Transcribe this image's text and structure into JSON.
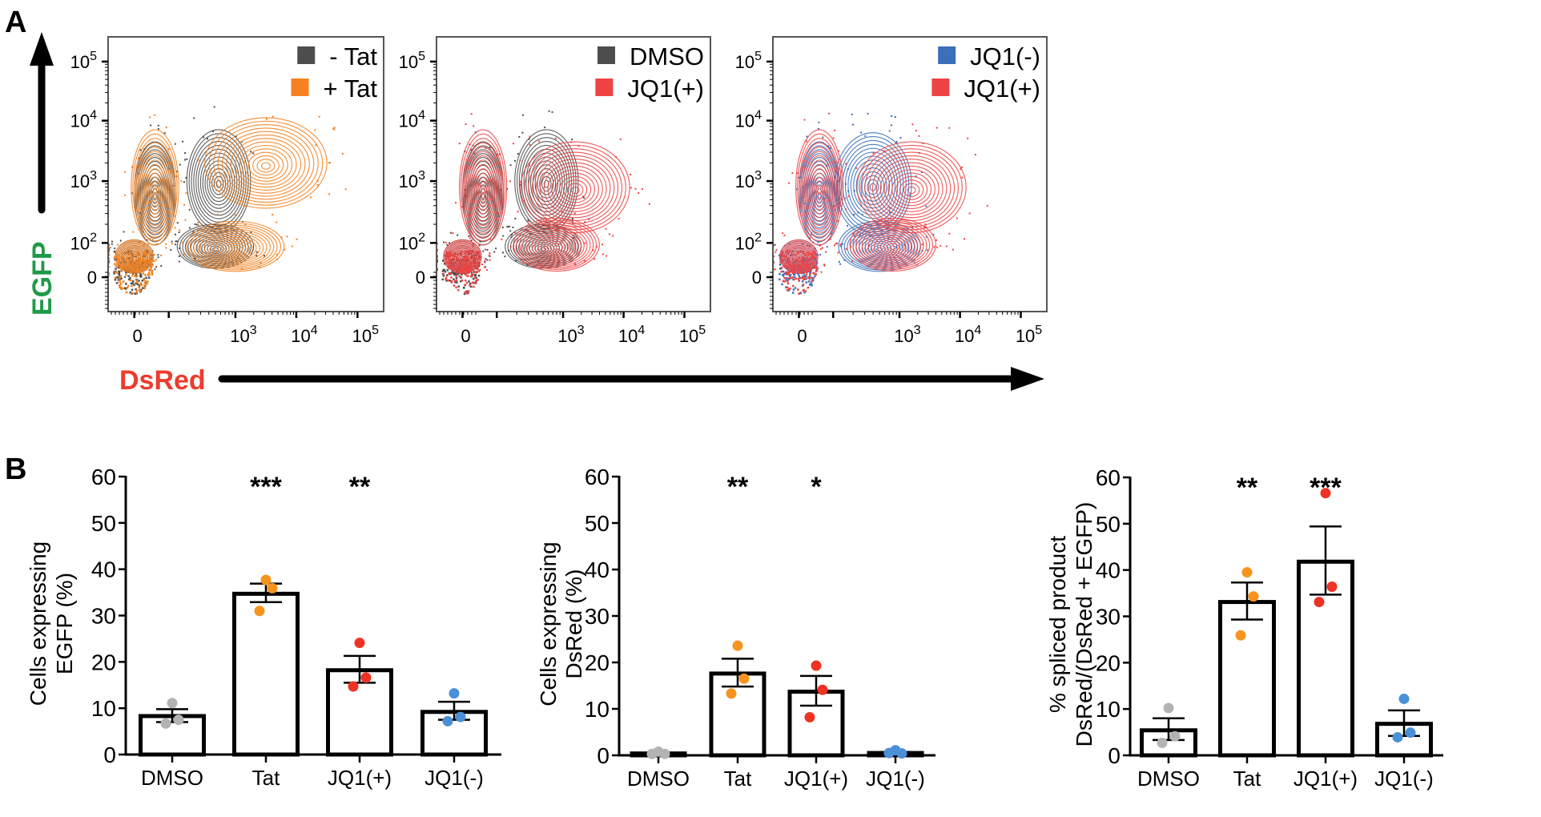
{
  "figure": {
    "panel_a_label": "A",
    "panel_b_label": "B",
    "egfp_axis_title": "EGFP",
    "dsred_axis_title": "DsRed",
    "egfp_color": "#1f9a48",
    "dsred_color": "#ee3b2c"
  },
  "chart_data": [
    {
      "type": "scatter",
      "subtype": "flow-cytometry-contour",
      "title": "",
      "xlabel": "DsRed",
      "ylabel": "EGFP",
      "x_ticks": [
        "0",
        "10^3",
        "10^4",
        "10^5"
      ],
      "y_ticks": [
        "0",
        "10^2",
        "10^3",
        "10^4",
        "10^5"
      ],
      "scale": "biexponential",
      "legend_position": "top-right",
      "series": [
        {
          "name": "- Tat",
          "color": "#4d4d4d",
          "populations": [
            {
              "x_log": 1.0,
              "y_log": 1.6,
              "spread_x": 0.55,
              "spread_y": 0.45
            },
            {
              "x_log": 1.6,
              "y_log": 2.8,
              "spread_x": 0.5,
              "spread_y": 0.85
            },
            {
              "x_log": 2.75,
              "y_log": 3.0,
              "spread_x": 0.5,
              "spread_y": 0.85
            },
            {
              "x_log": 2.7,
              "y_log": 1.9,
              "spread_x": 0.6,
              "spread_y": 0.4
            }
          ]
        },
        {
          "name": "+ Tat",
          "color": "#f5821f",
          "populations": [
            {
              "x_log": 1.0,
              "y_log": 1.6,
              "spread_x": 0.55,
              "spread_y": 0.45
            },
            {
              "x_log": 1.6,
              "y_log": 2.9,
              "spread_x": 0.55,
              "spread_y": 0.95
            },
            {
              "x_log": 3.5,
              "y_log": 3.3,
              "spread_x": 1.0,
              "spread_y": 0.75
            },
            {
              "x_log": 3.0,
              "y_log": 1.9,
              "spread_x": 0.8,
              "spread_y": 0.45
            }
          ]
        }
      ]
    },
    {
      "type": "scatter",
      "subtype": "flow-cytometry-contour",
      "title": "",
      "xlabel": "DsRed",
      "ylabel": "EGFP",
      "x_ticks": [
        "0",
        "10^3",
        "10^4",
        "10^5"
      ],
      "y_ticks": [
        "0",
        "10^2",
        "10^3",
        "10^4",
        "10^5"
      ],
      "scale": "biexponential",
      "legend_position": "top-right",
      "series": [
        {
          "name": "DMSO",
          "color": "#4d4d4d",
          "populations": [
            {
              "x_log": 1.0,
              "y_log": 1.6,
              "spread_x": 0.55,
              "spread_y": 0.45
            },
            {
              "x_log": 1.6,
              "y_log": 2.8,
              "spread_x": 0.5,
              "spread_y": 0.85
            },
            {
              "x_log": 2.75,
              "y_log": 3.0,
              "spread_x": 0.5,
              "spread_y": 0.85
            },
            {
              "x_log": 2.7,
              "y_log": 1.9,
              "spread_x": 0.6,
              "spread_y": 0.4
            }
          ]
        },
        {
          "name": "JQ1(+)",
          "color": "#ee4444",
          "populations": [
            {
              "x_log": 1.0,
              "y_log": 1.6,
              "spread_x": 0.55,
              "spread_y": 0.45
            },
            {
              "x_log": 1.6,
              "y_log": 2.9,
              "spread_x": 0.55,
              "spread_y": 0.95
            },
            {
              "x_log": 3.2,
              "y_log": 2.9,
              "spread_x": 0.9,
              "spread_y": 0.75
            },
            {
              "x_log": 2.9,
              "y_log": 1.95,
              "spread_x": 0.7,
              "spread_y": 0.45
            }
          ]
        }
      ]
    },
    {
      "type": "scatter",
      "subtype": "flow-cytometry-contour",
      "title": "",
      "xlabel": "DsRed",
      "ylabel": "EGFP",
      "x_ticks": [
        "0",
        "10^3",
        "10^4",
        "10^5"
      ],
      "y_ticks": [
        "0",
        "10^2",
        "10^3",
        "10^4",
        "10^5"
      ],
      "scale": "biexponential",
      "legend_position": "top-right",
      "series": [
        {
          "name": "JQ1(-)",
          "color": "#3b6fb9",
          "populations": [
            {
              "x_log": 1.0,
              "y_log": 1.6,
              "spread_x": 0.55,
              "spread_y": 0.45
            },
            {
              "x_log": 1.6,
              "y_log": 2.8,
              "spread_x": 0.5,
              "spread_y": 0.85
            },
            {
              "x_log": 2.6,
              "y_log": 2.95,
              "spread_x": 0.6,
              "spread_y": 0.85
            },
            {
              "x_log": 2.7,
              "y_log": 1.9,
              "spread_x": 0.65,
              "spread_y": 0.45
            }
          ]
        },
        {
          "name": "JQ1(+)",
          "color": "#ee4444",
          "populations": [
            {
              "x_log": 1.0,
              "y_log": 1.6,
              "spread_x": 0.55,
              "spread_y": 0.45
            },
            {
              "x_log": 1.6,
              "y_log": 2.9,
              "spread_x": 0.55,
              "spread_y": 0.95
            },
            {
              "x_log": 3.2,
              "y_log": 2.9,
              "spread_x": 0.9,
              "spread_y": 0.75
            },
            {
              "x_log": 2.9,
              "y_log": 1.95,
              "spread_x": 0.7,
              "spread_y": 0.45
            }
          ]
        }
      ]
    },
    {
      "type": "bar",
      "title": "",
      "ylabel": [
        "Cells expressing",
        "EGFP (%)"
      ],
      "xlabel": "",
      "ylim": [
        0,
        60
      ],
      "yticks": [
        0,
        10,
        20,
        30,
        40,
        50,
        60
      ],
      "categories": [
        "DMSO",
        "Tat",
        "JQ1(+)",
        "JQ1(-)"
      ],
      "values": [
        8.3,
        34.7,
        18.2,
        9.2
      ],
      "sem_upper": [
        9.8,
        36.9,
        21.3,
        11.4
      ],
      "sem_lower": [
        7.0,
        32.9,
        15.5,
        7.5
      ],
      "points": [
        [
          11.1,
          7.5,
          6.7
        ],
        [
          37.7,
          35.9,
          31.0
        ],
        [
          24.1,
          16.6,
          14.7
        ],
        [
          13.2,
          8.1,
          7.2
        ]
      ],
      "point_colors": [
        "#b3b3b3",
        "#f7941d",
        "#ee3224",
        "#4a90d6"
      ],
      "significance": [
        "",
        "***",
        "**",
        ""
      ]
    },
    {
      "type": "bar",
      "title": "",
      "ylabel": [
        "Cells expressing",
        "DsRed (%)"
      ],
      "xlabel": "",
      "ylim": [
        0,
        60
      ],
      "yticks": [
        0,
        10,
        20,
        30,
        40,
        50,
        60
      ],
      "categories": [
        "DMSO",
        "Tat",
        "JQ1(+)",
        "JQ1(-)"
      ],
      "values": [
        0.4,
        17.6,
        13.7,
        0.5
      ],
      "sem_upper": [
        0.5,
        20.8,
        17.1,
        0.7
      ],
      "sem_lower": [
        0.3,
        14.8,
        10.7,
        0.3
      ],
      "points": [
        [
          0.8,
          0.3,
          0.3
        ],
        [
          23.6,
          16.5,
          13.3
        ],
        [
          19.3,
          14.1,
          8.2
        ],
        [
          1.1,
          0.4,
          0.5
        ]
      ],
      "point_colors": [
        "#b3b3b3",
        "#f7941d",
        "#ee3224",
        "#4a90d6"
      ],
      "significance": [
        "",
        "**",
        "*",
        ""
      ]
    },
    {
      "type": "bar",
      "title": "",
      "ylabel": [
        "% spliced product",
        "DsRed/(DsRed + EGFP)"
      ],
      "xlabel": "",
      "ylim": [
        0,
        60
      ],
      "yticks": [
        0,
        10,
        20,
        30,
        40,
        50,
        60
      ],
      "categories": [
        "DMSO",
        "Tat",
        "JQ1(+)",
        "JQ1(-)"
      ],
      "values": [
        5.4,
        33.1,
        41.8,
        6.8
      ],
      "sem_upper": [
        8.0,
        37.3,
        49.4,
        9.7
      ],
      "sem_lower": [
        3.3,
        29.3,
        34.7,
        4.2
      ],
      "points": [
        [
          10.2,
          4.1,
          2.7
        ],
        [
          39.5,
          34.3,
          25.9
        ],
        [
          56.6,
          36.4,
          33.1
        ],
        [
          12.2,
          4.9,
          3.9
        ]
      ],
      "point_colors": [
        "#b3b3b3",
        "#f7941d",
        "#ee3224",
        "#4a90d6"
      ],
      "significance": [
        "",
        "**",
        "***",
        ""
      ]
    }
  ]
}
